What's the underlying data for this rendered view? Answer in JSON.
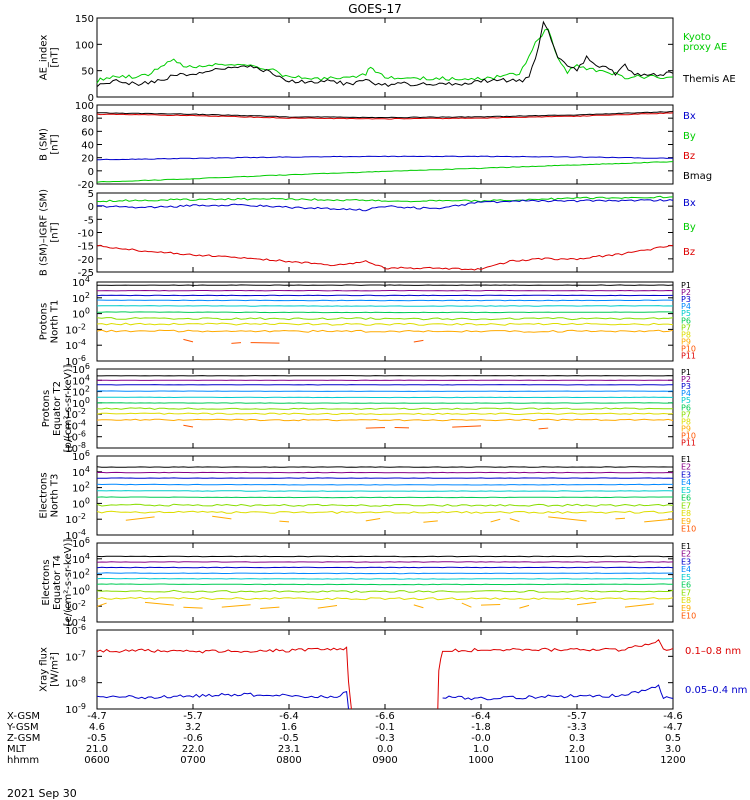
{
  "title": "GOES-17",
  "date_label": "2021 Sep 30",
  "colors": {
    "axis": "#000000",
    "black": "#000000",
    "red": "#dd0000",
    "green": "#00cc00",
    "blue": "#0000cc",
    "channels": [
      "#000000",
      "#880088",
      "#0000cc",
      "#0088ff",
      "#00cccc",
      "#00cc55",
      "#88dd00",
      "#dddd00",
      "#ffaa00",
      "#ff5500",
      "#dd0000"
    ]
  },
  "x_axis": {
    "hhmm": [
      "0600",
      "0700",
      "0800",
      "0900",
      "1000",
      "1100",
      "1200"
    ],
    "rows": [
      {
        "label": "X-GSM",
        "values": [
          "-4.7",
          "-5.7",
          "-6.4",
          "-6.6",
          "-6.4",
          "-5.7",
          "-4.6"
        ]
      },
      {
        "label": "Y-GSM",
        "values": [
          "4.6",
          "3.2",
          "1.6",
          "-0.1",
          "-1.8",
          "-3.3",
          "-4.7"
        ]
      },
      {
        "label": "Z-GSM",
        "values": [
          "-0.5",
          "-0.6",
          "-0.5",
          "-0.3",
          "-0.0",
          "0.3",
          "0.5"
        ]
      },
      {
        "label": "MLT",
        "values": [
          "21.0",
          "22.0",
          "23.1",
          "0.0",
          "1.0",
          "2.0",
          "3.0"
        ]
      },
      {
        "label": "hhmm",
        "values": [
          "0600",
          "0700",
          "0800",
          "0900",
          "1000",
          "1100",
          "1200"
        ]
      }
    ]
  },
  "chart_data": [
    {
      "type": "line",
      "ylabel": [
        "AE_index",
        "[nT]"
      ],
      "yscale": "linear",
      "ylim": [
        0,
        150
      ],
      "yticks": [
        0,
        50,
        100,
        150
      ],
      "ytick_labels": [
        "0",
        "50",
        "100",
        "150"
      ],
      "legend": [
        {
          "text": "Kyoto",
          "color": "#00cc00"
        },
        {
          "text": "proxy AE",
          "color": "#00cc00"
        },
        {
          "text": "Themis AE",
          "color": "#000000"
        }
      ],
      "series": [
        {
          "name": "Kyoto proxy AE",
          "color": "#00cc00",
          "x": [
            6.0,
            6.1,
            6.3,
            6.5,
            6.6,
            6.8,
            6.9,
            7.0,
            7.2,
            7.4,
            7.6,
            7.8,
            8.0,
            8.3,
            8.6,
            8.8,
            8.85,
            8.9,
            9.0,
            9.2,
            9.6,
            10.0,
            10.2,
            10.4,
            10.6,
            10.7,
            10.8,
            10.9,
            11.0,
            11.1,
            11.3,
            11.5,
            11.8,
            12.0
          ],
          "y": [
            30,
            38,
            38,
            40,
            52,
            70,
            60,
            55,
            62,
            60,
            60,
            52,
            38,
            35,
            35,
            42,
            60,
            48,
            38,
            35,
            35,
            35,
            38,
            45,
            112,
            130,
            75,
            45,
            62,
            52,
            48,
            38,
            38,
            38
          ]
        },
        {
          "name": "Themis AE",
          "color": "#000000",
          "x": [
            6.0,
            6.2,
            6.4,
            6.6,
            6.8,
            7.0,
            7.2,
            7.4,
            7.6,
            7.8,
            8.0,
            8.2,
            8.4,
            8.6,
            8.8,
            9.0,
            9.2,
            9.4,
            9.6,
            9.8,
            10.0,
            10.2,
            10.4,
            10.5,
            10.6,
            10.65,
            10.7,
            10.8,
            10.9,
            11.0,
            11.1,
            11.2,
            11.3,
            11.4,
            11.5,
            11.6,
            11.7,
            11.8,
            12.0
          ],
          "y": [
            22,
            30,
            25,
            28,
            40,
            45,
            50,
            55,
            58,
            48,
            30,
            28,
            30,
            25,
            30,
            22,
            25,
            25,
            25,
            25,
            30,
            32,
            30,
            35,
            95,
            140,
            125,
            75,
            60,
            50,
            75,
            62,
            55,
            45,
            60,
            45,
            40,
            42,
            45
          ]
        }
      ]
    },
    {
      "type": "line",
      "ylabel": [
        "B (SM)",
        "[nT]"
      ],
      "yscale": "linear",
      "ylim": [
        -20,
        100
      ],
      "yticks": [
        -20,
        0,
        20,
        40,
        60,
        80,
        100
      ],
      "ytick_labels": [
        "-20",
        "0",
        "20",
        "40",
        "60",
        "80",
        "100"
      ],
      "legend": [
        {
          "text": "Bx",
          "color": "#0000cc"
        },
        {
          "text": "By",
          "color": "#00cc00"
        },
        {
          "text": "Bz",
          "color": "#dd0000"
        },
        {
          "text": "Bmag",
          "color": "#000000"
        }
      ],
      "series": [
        {
          "name": "Bmag",
          "color": "#000000",
          "x": [
            6,
            7,
            8,
            9,
            10,
            11,
            12
          ],
          "y": [
            88,
            86,
            82,
            81,
            82,
            85,
            90
          ]
        },
        {
          "name": "Bz",
          "color": "#dd0000",
          "x": [
            6,
            7,
            8,
            9,
            10,
            11,
            12
          ],
          "y": [
            86,
            84,
            80,
            79,
            80,
            83,
            88
          ]
        },
        {
          "name": "Bx",
          "color": "#0000cc",
          "x": [
            6,
            7,
            8,
            9,
            10,
            11,
            12
          ],
          "y": [
            17,
            19,
            21,
            22,
            22,
            21,
            19
          ]
        },
        {
          "name": "By",
          "color": "#00cc00",
          "x": [
            6,
            7,
            8,
            9,
            10,
            11,
            12
          ],
          "y": [
            -17,
            -12,
            -6,
            -1,
            4,
            9,
            14
          ]
        }
      ]
    },
    {
      "type": "line",
      "ylabel": [
        "B (SM)–IGRF (SM)",
        "[nT]"
      ],
      "yscale": "linear",
      "ylim": [
        -25,
        5
      ],
      "yticks": [
        -25,
        -20,
        -15,
        -10,
        -5,
        0,
        5
      ],
      "ytick_labels": [
        "-25",
        "-20",
        "-15",
        "-10",
        "-5",
        "0",
        "5"
      ],
      "legend": [
        {
          "text": "Bx",
          "color": "#0000cc"
        },
        {
          "text": "By",
          "color": "#00cc00"
        },
        {
          "text": "Bz",
          "color": "#dd0000"
        }
      ],
      "series": [
        {
          "name": "By",
          "color": "#00cc00",
          "x": [
            6,
            7,
            8,
            9,
            10,
            11,
            12
          ],
          "y": [
            2,
            2.5,
            2.8,
            2,
            2,
            3,
            3.5
          ]
        },
        {
          "name": "Bx",
          "color": "#0000cc",
          "x": [
            6,
            6.5,
            7,
            7.5,
            8,
            8.5,
            8.8,
            9,
            9.5,
            10,
            10.5,
            11,
            11.5,
            12
          ],
          "y": [
            0,
            -0.5,
            0.2,
            0.5,
            -0.5,
            -1,
            -1.5,
            0,
            -1,
            1.5,
            2,
            2,
            2.2,
            2.2
          ]
        },
        {
          "name": "Bz",
          "color": "#dd0000",
          "x": [
            6,
            6.5,
            7,
            7.5,
            8,
            8.5,
            8.8,
            8.9,
            9,
            9.5,
            10,
            10.3,
            10.6,
            11,
            11.5,
            12
          ],
          "y": [
            -15,
            -17,
            -18.5,
            -19.5,
            -21,
            -22.5,
            -21,
            -22.5,
            -23.5,
            -23.5,
            -24,
            -21,
            -20,
            -20,
            -18,
            -15
          ]
        }
      ]
    },
    {
      "type": "line",
      "ylabel": [
        "Protons",
        "North T1"
      ],
      "yscale": "log",
      "ylim": [
        -6,
        4
      ],
      "yticks": [
        4,
        2,
        0,
        -2,
        -4,
        -6
      ],
      "ytick_labels": [
        "10^4",
        "10^2",
        "10^0",
        "10^-2",
        "10^-4",
        "10^-6"
      ],
      "legend": [
        "P1",
        "P2",
        "P3",
        "P4",
        "P5",
        "P6",
        "P7",
        "P8",
        "P9",
        "P10",
        "P11"
      ],
      "series_log10": [
        {
          "name": "P1",
          "level": 3.6
        },
        {
          "name": "P2",
          "level": 2.9
        },
        {
          "name": "P3",
          "level": 2.3
        },
        {
          "name": "P4",
          "level": 1.7
        },
        {
          "name": "P5",
          "level": 1.0
        },
        {
          "name": "P6",
          "level": 0.2
        },
        {
          "name": "P7",
          "level": -0.6
        },
        {
          "name": "P8",
          "level": -1.3
        },
        {
          "name": "P9",
          "level": -2.2
        },
        {
          "name": "P10",
          "level": -3.6,
          "sparse": [
            [
              6.9,
              7.0
            ],
            [
              7.4,
              7.5
            ],
            [
              7.6,
              7.9
            ],
            [
              9.3,
              9.4
            ]
          ]
        },
        {
          "name": "P11",
          "level": null
        }
      ]
    },
    {
      "type": "line",
      "ylabel": [
        "Protons",
        "Equator T2",
        "[p/(cm²-s-sr-keV)]"
      ],
      "yscale": "log",
      "ylim": [
        -8,
        6
      ],
      "yticks": [
        6,
        4,
        2,
        0,
        -2,
        -4,
        -6,
        -8
      ],
      "ytick_labels": [
        "10^6",
        "10^4",
        "10^2",
        "10^0",
        "10^-2",
        "10^-4",
        "10^-6",
        "10^-8"
      ],
      "legend": [
        "P1",
        "P2",
        "P3",
        "P4",
        "P5",
        "P6",
        "P7",
        "P8",
        "P9",
        "P10",
        "P11"
      ],
      "series_log10": [
        {
          "name": "P1",
          "level": 4.8
        },
        {
          "name": "P2",
          "level": 4.0
        },
        {
          "name": "P3",
          "level": 3.2
        },
        {
          "name": "P4",
          "level": 2.1
        },
        {
          "name": "P5",
          "level": 1.0
        },
        {
          "name": "P6",
          "level": 0.0
        },
        {
          "name": "P7",
          "level": -1.0
        },
        {
          "name": "P8",
          "level": -1.9
        },
        {
          "name": "P9",
          "level": -3.0
        },
        {
          "name": "P10",
          "level": -4.3,
          "sparse": [
            [
              6.9,
              7.0
            ],
            [
              8.8,
              9.0
            ],
            [
              9.1,
              9.25
            ],
            [
              9.7,
              10.0
            ],
            [
              10.6,
              10.7
            ]
          ]
        },
        {
          "name": "P11",
          "level": null
        }
      ]
    },
    {
      "type": "line",
      "ylabel": [
        "Electrons",
        "North T3"
      ],
      "yscale": "log",
      "ylim": [
        -4,
        6
      ],
      "yticks": [
        6,
        4,
        2,
        0,
        -2,
        -4
      ],
      "ytick_labels": [
        "10^6",
        "10^4",
        "10^2",
        "10^0",
        "10^-2",
        "10^-4"
      ],
      "legend": [
        "E1",
        "E2",
        "E3",
        "E4",
        "E5",
        "E6",
        "E7",
        "E8",
        "E9",
        "E10"
      ],
      "series_log10": [
        {
          "name": "E1",
          "level": 4.6
        },
        {
          "name": "E2",
          "level": 3.9
        },
        {
          "name": "E3",
          "level": 3.2
        },
        {
          "name": "E4",
          "level": 2.4
        },
        {
          "name": "E5",
          "level": 1.6
        },
        {
          "name": "E6",
          "level": 0.8
        },
        {
          "name": "E7",
          "level": -0.2
        },
        {
          "name": "E8",
          "level": -1.1
        },
        {
          "name": "E9",
          "level": -2.0,
          "sparse": [
            [
              6.3,
              6.6
            ],
            [
              7.2,
              7.4
            ],
            [
              7.9,
              8.0
            ],
            [
              8.8,
              8.95
            ],
            [
              9.4,
              9.55
            ],
            [
              10.1,
              10.2
            ],
            [
              10.3,
              10.4
            ],
            [
              10.7,
              11.1
            ],
            [
              11.4,
              11.5
            ],
            [
              11.7,
              12.0
            ]
          ]
        },
        {
          "name": "E10",
          "level": null
        }
      ]
    },
    {
      "type": "line",
      "ylabel": [
        "Electrons",
        "Equator T4",
        "[e/(cm²-s-sr-keV)]"
      ],
      "yscale": "log",
      "ylim": [
        -4,
        6
      ],
      "yticks": [
        6,
        4,
        2,
        0,
        -2,
        -4
      ],
      "ytick_labels": [
        "10^6",
        "10^4",
        "10^2",
        "10^0",
        "10^-2",
        "10^-4"
      ],
      "legend": [
        "E1",
        "E2",
        "E3",
        "E4",
        "E5",
        "E6",
        "E7",
        "E8",
        "E9",
        "E10"
      ],
      "series_log10": [
        {
          "name": "E1",
          "level": 4.3
        },
        {
          "name": "E2",
          "level": 3.6
        },
        {
          "name": "E3",
          "level": 2.9
        },
        {
          "name": "E4",
          "level": 2.2
        },
        {
          "name": "E5",
          "level": 1.5
        },
        {
          "name": "E6",
          "level": 0.8
        },
        {
          "name": "E7",
          "level": -0.1
        },
        {
          "name": "E8",
          "level": -1.0
        },
        {
          "name": "E9",
          "level": -1.9,
          "sparse": [
            [
              6.0,
              6.1
            ],
            [
              6.5,
              6.8
            ],
            [
              6.9,
              7.1
            ],
            [
              7.3,
              7.6
            ],
            [
              7.7,
              7.9
            ],
            [
              8.3,
              8.5
            ],
            [
              9.3,
              9.4
            ],
            [
              9.8,
              9.9
            ],
            [
              10.0,
              10.2
            ],
            [
              10.4,
              10.5
            ],
            [
              11.0,
              11.2
            ],
            [
              11.5,
              11.8
            ]
          ]
        },
        {
          "name": "E10",
          "level": null
        }
      ]
    },
    {
      "type": "line",
      "ylabel": [
        "Xray flux",
        "[W/m²]"
      ],
      "yscale": "log",
      "ylim": [
        -9,
        -6
      ],
      "yticks": [
        -6,
        -7,
        -8,
        -9
      ],
      "ytick_labels": [
        "10^-6",
        "10^-7",
        "10^-8",
        "10^-9"
      ],
      "legend": [
        {
          "text": "0.1–0.8 nm",
          "color": "#dd0000"
        },
        {
          "text": "0.05–0.4 nm",
          "color": "#0000cc"
        }
      ],
      "gap": [
        8.6,
        9.55
      ],
      "series": [
        {
          "name": "0.1–0.8 nm",
          "color": "#dd0000",
          "x": [
            6,
            6.5,
            7,
            7.5,
            8,
            8.5,
            8.6,
            8.62,
            8.65
          ],
          "y": [
            -6.8,
            -6.78,
            -6.82,
            -6.8,
            -6.78,
            -6.72,
            -6.7,
            -8.0,
            -9.0
          ]
        },
        {
          "name": "0.1–0.8 nm (b)",
          "color": "#dd0000",
          "x": [
            9.55,
            9.56,
            9.6,
            10,
            10.5,
            11,
            11.5,
            11.85,
            11.9,
            12
          ],
          "y": [
            -9.0,
            -7.5,
            -6.78,
            -6.76,
            -6.75,
            -6.74,
            -6.76,
            -6.4,
            -6.75,
            -6.7
          ]
        },
        {
          "name": "0.05–0.4 nm",
          "color": "#0000cc",
          "x": [
            6,
            6.5,
            7,
            7.5,
            8,
            8.5,
            8.6,
            8.62
          ],
          "y": [
            -8.5,
            -8.55,
            -8.5,
            -8.45,
            -8.5,
            -8.55,
            -8.3,
            -9.0
          ]
        },
        {
          "name": "0.05–0.4 nm (b)",
          "color": "#0000cc",
          "x": [
            9.6,
            10,
            10.5,
            11,
            11.5,
            11.85,
            11.9,
            12
          ],
          "y": [
            -8.55,
            -8.6,
            -8.55,
            -8.5,
            -8.5,
            -8.1,
            -8.55,
            -8.6
          ]
        }
      ]
    }
  ]
}
